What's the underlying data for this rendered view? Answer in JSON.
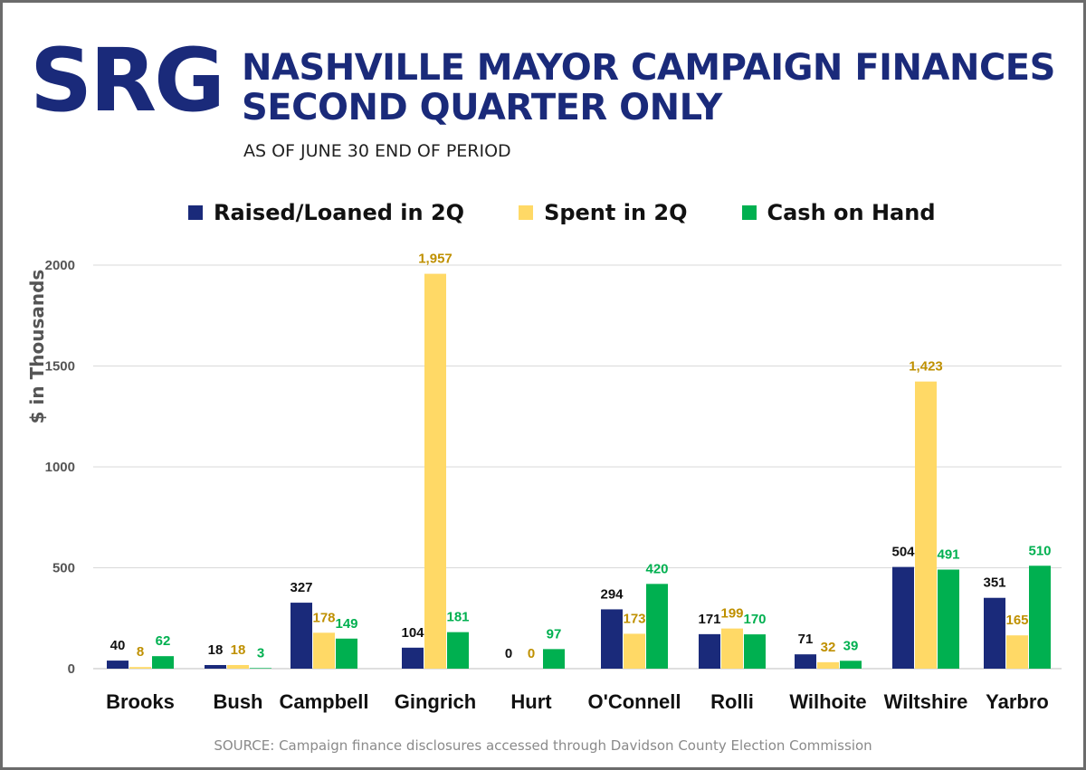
{
  "header": {
    "logo": "SRG",
    "title_line1": "NASHVILLE MAYOR CAMPAIGN FINANCES",
    "title_line2": "SECOND QUARTER ONLY",
    "subtitle": "AS OF JUNE 30 END OF PERIOD"
  },
  "footer": {
    "source": "SOURCE: Campaign finance disclosures accessed through Davidson County Election Commission"
  },
  "chart_data": {
    "type": "bar",
    "ylabel": "$ in Thousands",
    "xlabel": "",
    "ylim": [
      0,
      2000
    ],
    "yticks": [
      "0",
      "500",
      "1000",
      "1500",
      "2000"
    ],
    "grid": true,
    "legend_position": "top",
    "categories": [
      "Brooks",
      "Bush",
      "Campbell",
      "Gingrich",
      "Hurt",
      "O'Connell",
      "Rolli",
      "Wilhoite",
      "Wiltshire",
      "Yarbro"
    ],
    "series": [
      {
        "name": "Raised/Loaned in 2Q",
        "color": "#1a2a7a",
        "label_color": "#111111",
        "values": [
          40,
          18,
          327,
          104,
          0,
          294,
          171,
          71,
          504,
          351
        ],
        "labels": [
          "40",
          "18",
          "327",
          "104",
          "0",
          "294",
          "171",
          "71",
          "504",
          "351"
        ]
      },
      {
        "name": "Spent in 2Q",
        "color": "#ffd966",
        "label_color": "#bf9000",
        "values": [
          8,
          18,
          178,
          1957,
          0,
          173,
          199,
          32,
          1423,
          165
        ],
        "labels": [
          "8",
          "18",
          "178",
          "1,957",
          "0",
          "173",
          "199",
          "32",
          "1,423",
          "165"
        ]
      },
      {
        "name": "Cash on Hand",
        "color": "#00b050",
        "label_color": "#00b050",
        "values": [
          62,
          3,
          149,
          181,
          97,
          420,
          170,
          39,
          491,
          510
        ],
        "labels": [
          "62",
          "3",
          "149",
          "181",
          "97",
          "420",
          "170",
          "39",
          "491",
          "510"
        ]
      }
    ]
  }
}
